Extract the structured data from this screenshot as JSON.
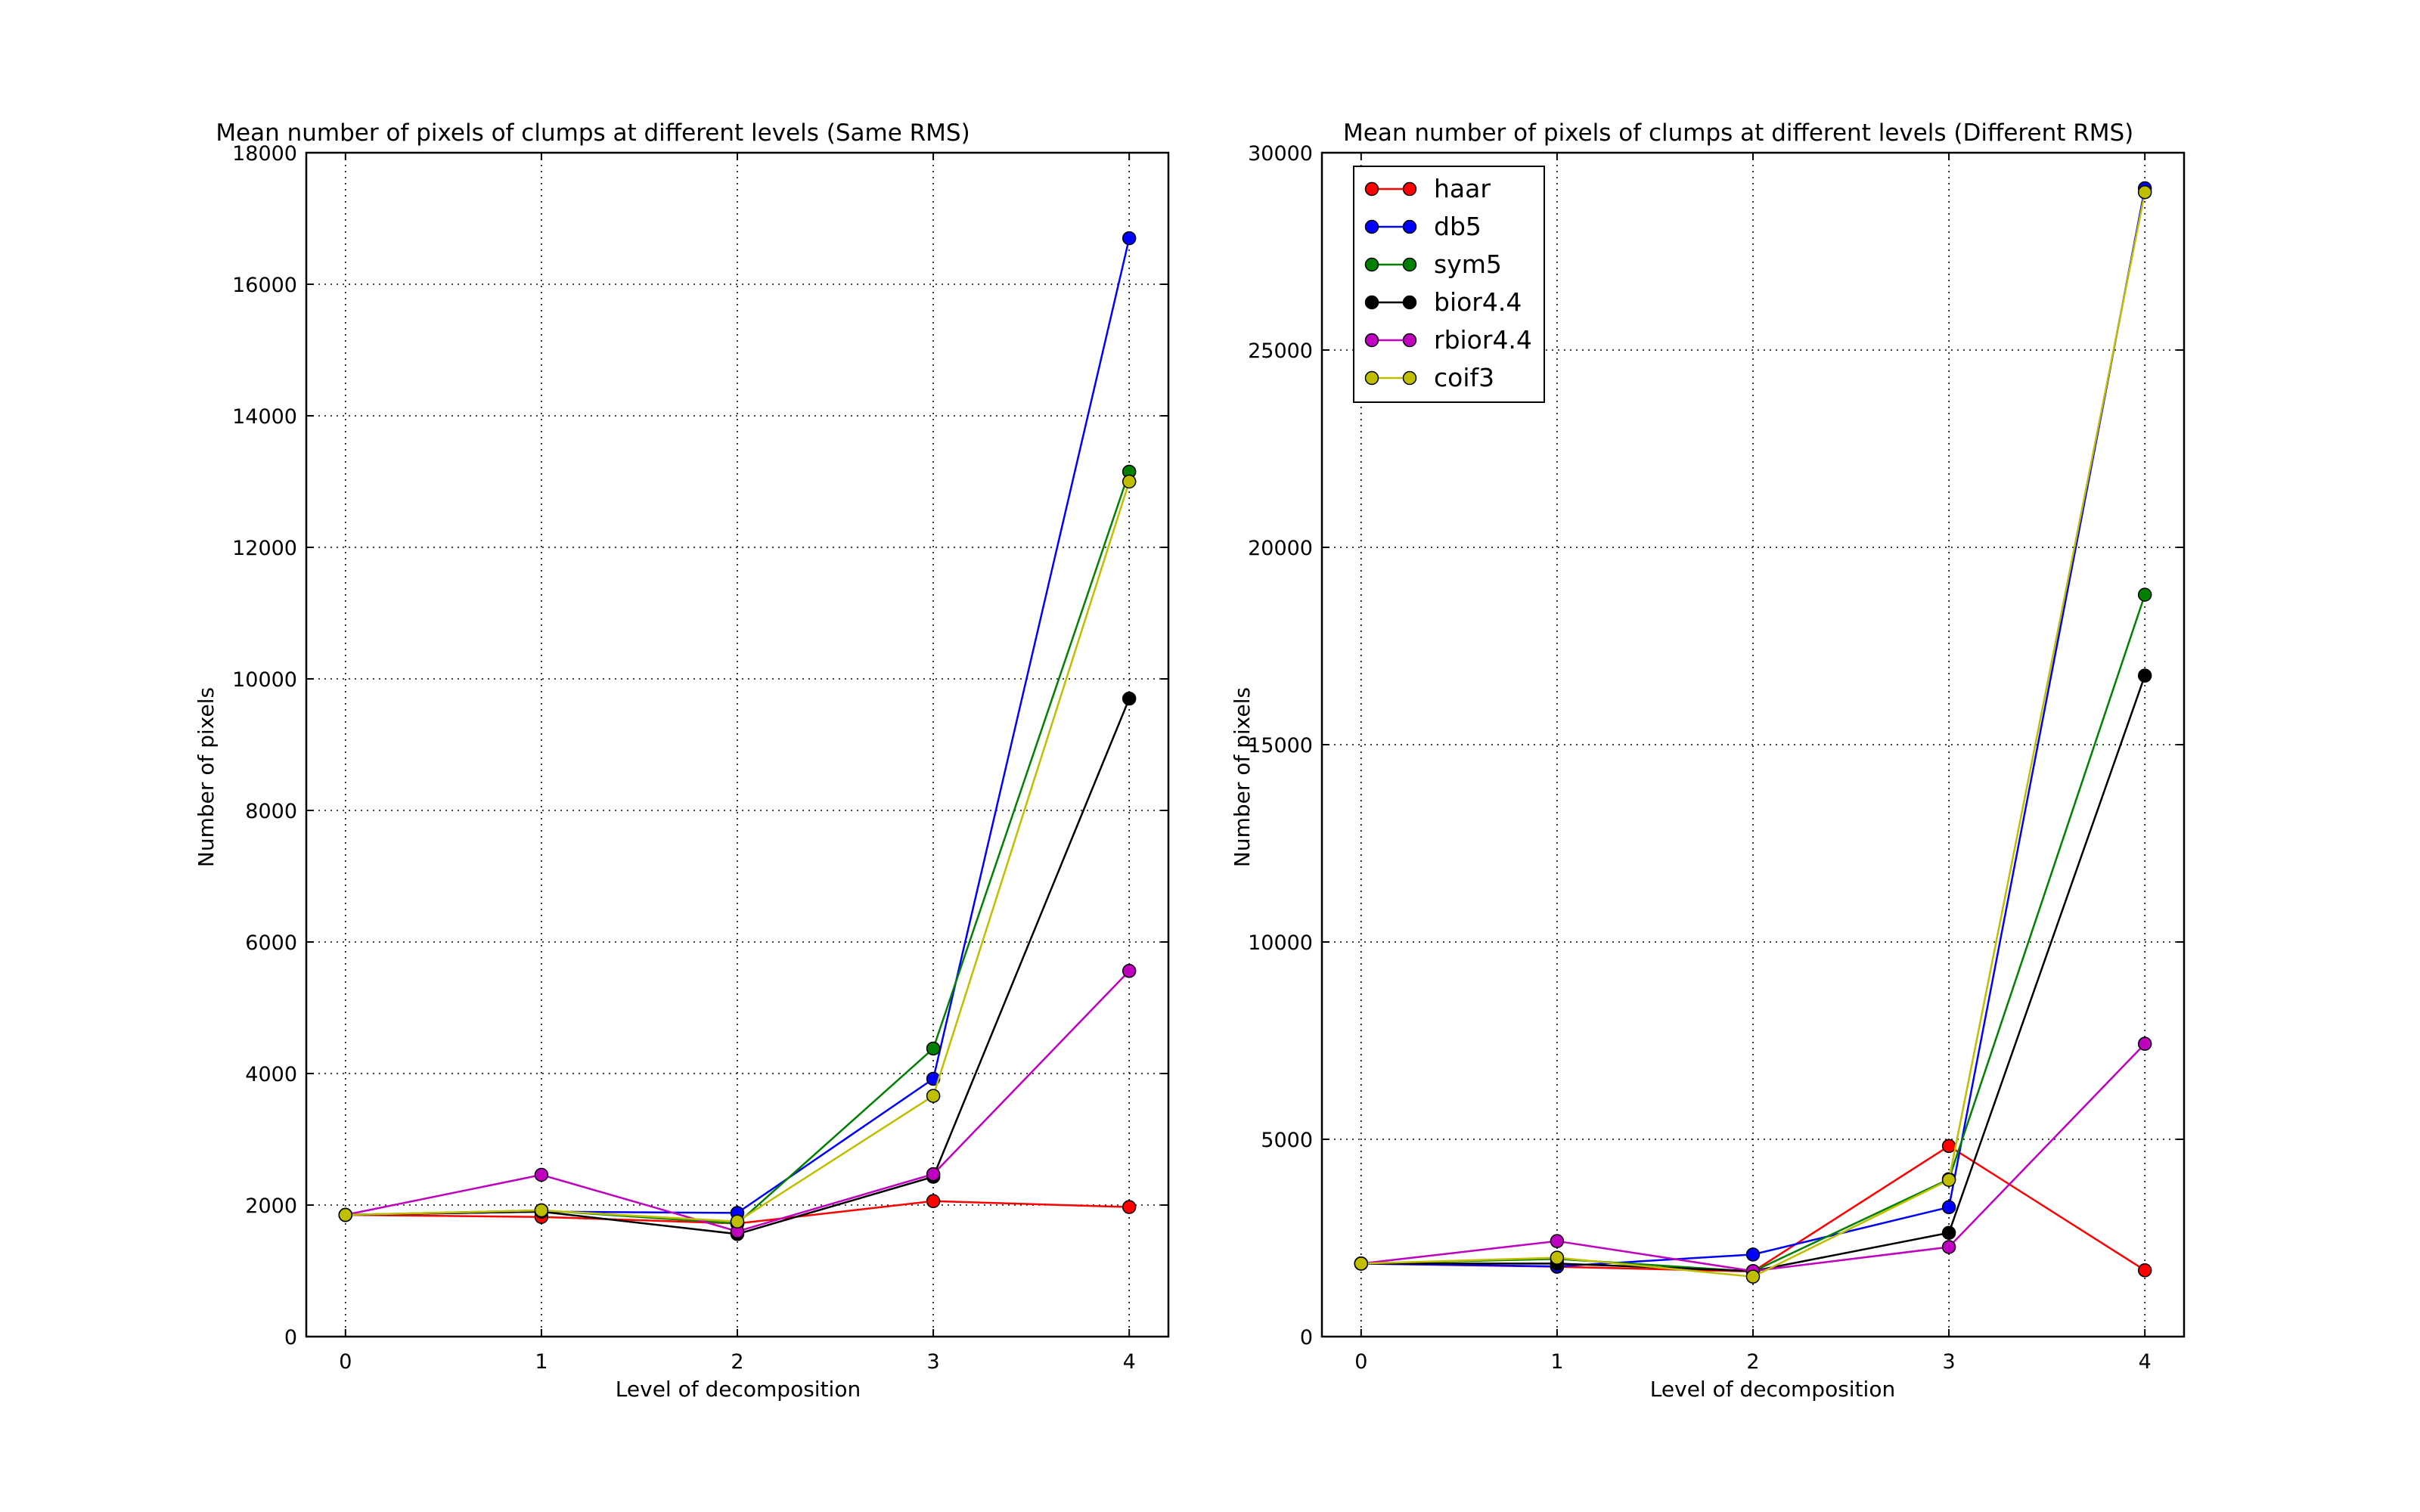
{
  "chart_data": [
    {
      "type": "line",
      "title": "Mean number of pixels of clumps at different levels (Same RMS)",
      "xlabel": "Level of decomposition",
      "ylabel": "Number of pixels",
      "x": [
        0,
        1,
        2,
        3,
        4
      ],
      "xlim": [
        -0.2,
        4.2
      ],
      "ylim": [
        0,
        18000
      ],
      "xticks": [
        "0",
        "1",
        "2",
        "3",
        "4"
      ],
      "yticks": [
        "0",
        "2000",
        "4000",
        "6000",
        "8000",
        "10000",
        "12000",
        "14000",
        "16000",
        "18000"
      ],
      "grid": true,
      "legend": null,
      "series": [
        {
          "name": "haar",
          "color": "#ff0000",
          "values": [
            1850,
            1820,
            1720,
            2060,
            1970
          ]
        },
        {
          "name": "db5",
          "color": "#0000ff",
          "values": [
            1850,
            1900,
            1880,
            3920,
            16700
          ]
        },
        {
          "name": "sym5",
          "color": "#008000",
          "values": [
            1850,
            1920,
            1720,
            4380,
            13150
          ]
        },
        {
          "name": "bior4.4",
          "color": "#000000",
          "values": [
            1850,
            1900,
            1560,
            2430,
            9700
          ]
        },
        {
          "name": "rbior4.4",
          "color": "#bf00bf",
          "values": [
            1850,
            2460,
            1600,
            2470,
            5560
          ]
        },
        {
          "name": "coif3",
          "color": "#bfbf00",
          "values": [
            1850,
            1920,
            1750,
            3660,
            13000
          ]
        }
      ]
    },
    {
      "type": "line",
      "title": "Mean number of pixels of clumps at different levels (Different RMS)",
      "xlabel": "Level of decomposition",
      "ylabel": "Number of pixels",
      "x": [
        0,
        1,
        2,
        3,
        4
      ],
      "xlim": [
        -0.2,
        4.2
      ],
      "ylim": [
        0,
        30000
      ],
      "xticks": [
        "0",
        "1",
        "2",
        "3",
        "4"
      ],
      "yticks": [
        "0",
        "5000",
        "10000",
        "15000",
        "20000",
        "25000",
        "30000"
      ],
      "grid": true,
      "legend": "top-left",
      "series": [
        {
          "name": "haar",
          "color": "#ff0000",
          "values": [
            1850,
            1770,
            1650,
            4830,
            1680
          ]
        },
        {
          "name": "db5",
          "color": "#0000ff",
          "values": [
            1850,
            1780,
            2080,
            3280,
            29100
          ]
        },
        {
          "name": "sym5",
          "color": "#008000",
          "values": [
            1850,
            1970,
            1650,
            3990,
            18800
          ]
        },
        {
          "name": "bior4.4",
          "color": "#000000",
          "values": [
            1850,
            1850,
            1660,
            2630,
            16750
          ]
        },
        {
          "name": "rbior4.4",
          "color": "#bf00bf",
          "values": [
            1850,
            2420,
            1660,
            2270,
            7420
          ]
        },
        {
          "name": "coif3",
          "color": "#bfbf00",
          "values": [
            1850,
            2000,
            1520,
            3970,
            29000
          ]
        }
      ]
    }
  ]
}
